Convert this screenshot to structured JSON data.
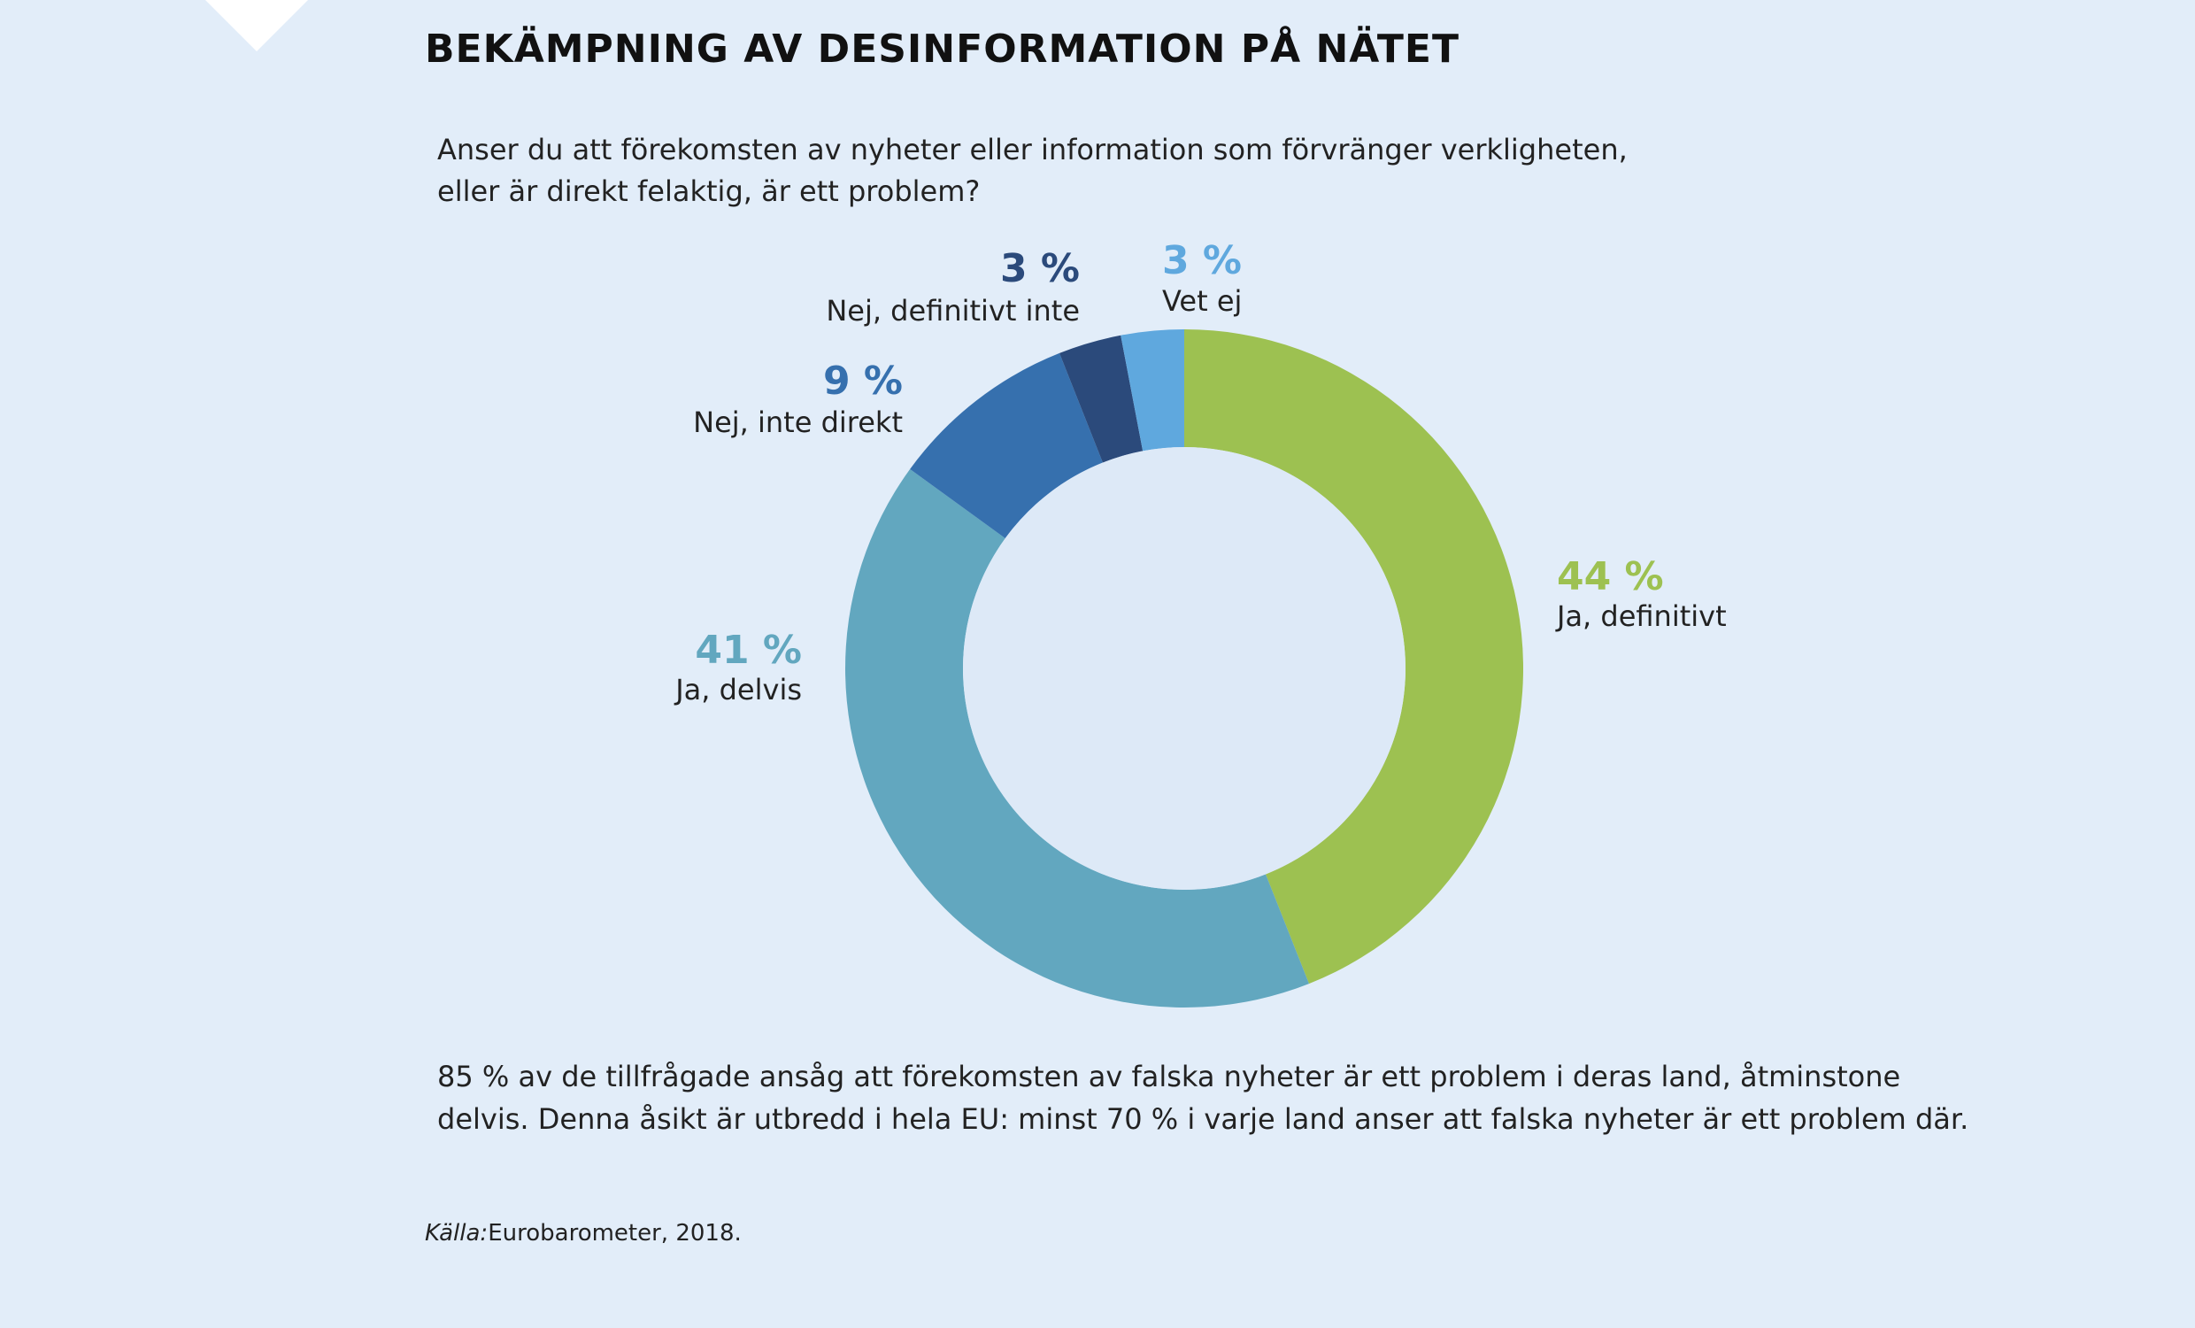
{
  "title": "BEKÄMPNING AV DESINFORMATION PÅ NÄTET",
  "question": [
    "Anser du att förekomsten av nyheter eller information som förvränger verkligheten,",
    "eller är direkt felaktig, är ett problem?"
  ],
  "summary": [
    "85 % av de tillfrågade ansåg att förekomsten av falska nyheter är ett problem i deras land, åtminstone",
    "delvis. Denna åsikt är utbredd i hela EU: minst 70 % i varje land anser att falska nyheter är ett problem där."
  ],
  "source": {
    "label": "Källa:",
    "text": "Eurobarometer, 2018."
  },
  "chart_data": {
    "type": "pie",
    "donut": true,
    "start": "top, clockwise",
    "categories": [
      "Ja, definitivt",
      "Ja, delvis",
      "Nej, inte direkt",
      "Nej, definitivt inte",
      "Vet ej"
    ],
    "values": [
      44,
      41,
      9,
      3,
      3
    ],
    "value_labels": [
      "44 %",
      "41 %",
      "9 %",
      "3 %",
      "3 %"
    ],
    "colors": [
      "#9dc151",
      "#62a7bf",
      "#3670ae",
      "#2b4a7b",
      "#5fa8de"
    ],
    "hole_color": "#dde9f7"
  }
}
